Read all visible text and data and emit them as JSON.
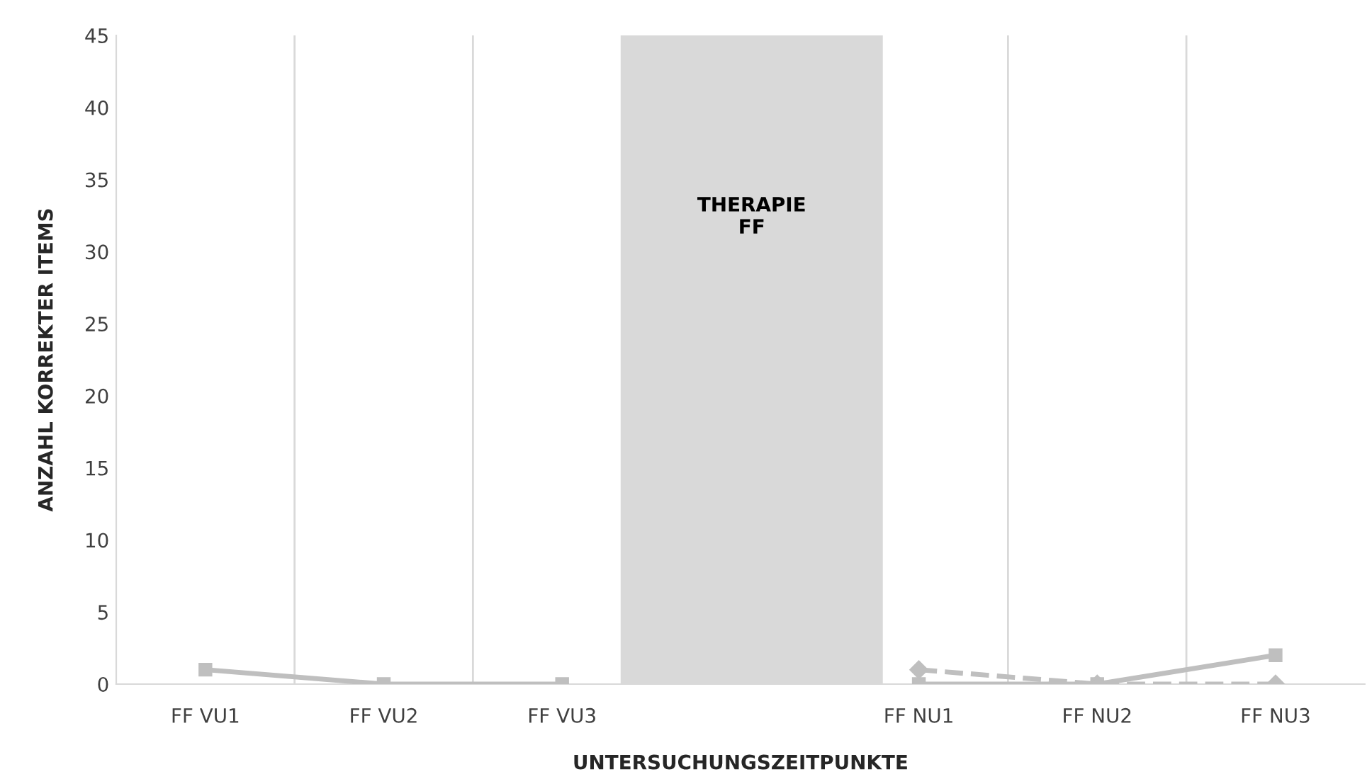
{
  "chart_data": {
    "type": "line",
    "xlabel": "UNTERSUCHUNGSZEITPUNKTE",
    "ylabel": "ANZAHL KORREKTER ITEMS",
    "categories": [
      "FF VU1",
      "FF VU2",
      "FF VU3",
      null,
      "FF NU1",
      "FF NU2",
      "FF NU3"
    ],
    "series": [
      {
        "color": "#bfbfbf",
        "marker": "square",
        "line_style": "solid",
        "values": [
          1,
          0,
          0,
          null,
          0,
          0,
          2
        ]
      },
      {
        "color": "#bfbfbf",
        "marker": "diamond",
        "line_style": "dashed",
        "values": [
          null,
          null,
          null,
          null,
          1,
          0,
          0
        ]
      }
    ],
    "ylim": [
      0,
      45
    ],
    "yticks": [
      0,
      5,
      10,
      15,
      20,
      25,
      30,
      35,
      40,
      45
    ],
    "annotations": [
      "THERAPIE\nFF"
    ],
    "grid": "x",
    "legend": false
  }
}
